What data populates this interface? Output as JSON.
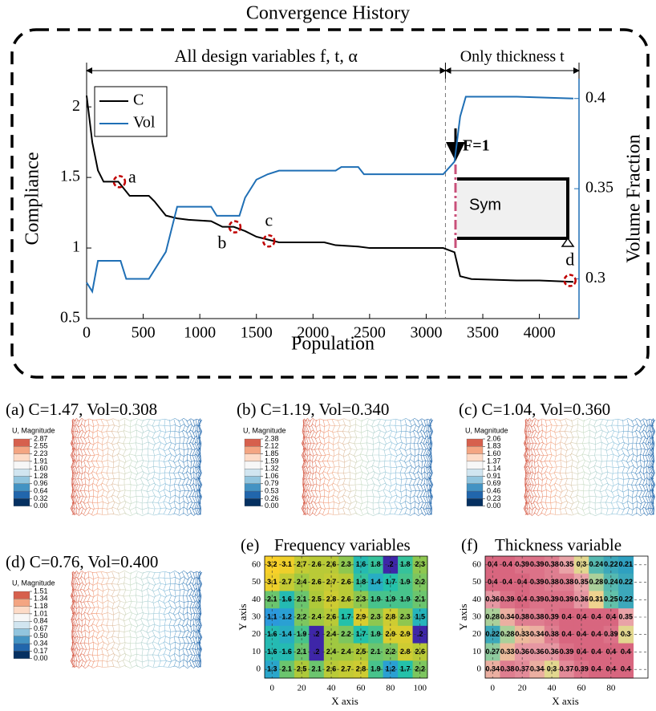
{
  "chart_data": [
    {
      "type": "line",
      "title": "Convergence History",
      "xlabel": "Population",
      "ylabel": "Compliance",
      "y2label": "Volume Fraction",
      "span_labels": [
        "All design variables f, t, α",
        "Only thickness t"
      ],
      "split_x": 3170,
      "xlim": [
        0,
        4350
      ],
      "xticks": [
        0,
        500,
        1000,
        1500,
        2000,
        2500,
        3000,
        3500,
        4000
      ],
      "ylim": [
        0.5,
        2.2
      ],
      "yticks": [
        0.5,
        1,
        1.5,
        2
      ],
      "y2lim": [
        0.278,
        0.411
      ],
      "y2ticks": [
        0.3,
        0.35,
        0.4
      ],
      "series": [
        {
          "name": "C",
          "color": "#000000",
          "x": [
            0,
            50,
            100,
            150,
            280,
            380,
            550,
            600,
            700,
            800,
            900,
            1100,
            1200,
            1300,
            1400,
            1500,
            1600,
            1700,
            2100,
            2200,
            2400,
            2500,
            3150,
            3250,
            3300,
            3400,
            3800,
            4000,
            4300
          ],
          "values": [
            2.08,
            1.75,
            1.55,
            1.47,
            1.47,
            1.37,
            1.37,
            1.33,
            1.23,
            1.21,
            1.2,
            1.19,
            1.15,
            1.15,
            1.12,
            1.08,
            1.06,
            1.04,
            1.04,
            1.02,
            1.01,
            1,
            1,
            0.97,
            0.8,
            0.78,
            0.77,
            0.77,
            0.76
          ]
        },
        {
          "name": "Vol",
          "color": "#1f6fb5",
          "axis": "y2",
          "x": [
            0,
            50,
            100,
            300,
            350,
            550,
            650,
            700,
            800,
            1100,
            1150,
            1350,
            1400,
            1500,
            1600,
            1700,
            2200,
            2250,
            2400,
            2450,
            3150,
            3250,
            3300,
            3350,
            3800,
            4300
          ],
          "values": [
            0.298,
            0.293,
            0.31,
            0.31,
            0.3,
            0.3,
            0.31,
            0.315,
            0.34,
            0.34,
            0.335,
            0.335,
            0.345,
            0.355,
            0.358,
            0.36,
            0.36,
            0.362,
            0.362,
            0.358,
            0.358,
            0.365,
            0.39,
            0.401,
            0.401,
            0.4
          ]
        }
      ],
      "annotations": [
        {
          "text": "a",
          "x": 290,
          "y": 1.47
        },
        {
          "text": "b",
          "x": 1310,
          "y": 1.15
        },
        {
          "text": "c",
          "x": 1610,
          "y": 1.05
        },
        {
          "text": "d",
          "x": 4270,
          "y": 0.77
        }
      ],
      "inset": {
        "force": "F=1",
        "label": "Sym"
      }
    },
    {
      "type": "mesh",
      "title": "(a) C=1.47, Vol=0.308",
      "colorbar_title": "U, Magnitude",
      "colorbar_ticks": [
        2.87,
        2.55,
        2.23,
        1.91,
        {
          "value": 1.6,
          "label": "1.60"
        },
        1.28,
        0.96,
        0.64,
        0.32,
        {
          "value": 0,
          "label": "0.00"
        }
      ],
      "colors": [
        "#d6604d",
        "#f4a582",
        "#fddbc7",
        "#f7f7f7",
        "#d1e5f0",
        "#92c5de",
        "#4393c3",
        "#2166ac",
        "#053061"
      ]
    },
    {
      "type": "mesh",
      "title": "(b) C=1.19,  Vol=0.340",
      "colorbar_title": "U, Magnitude",
      "colorbar_ticks": [
        2.38,
        2.12,
        1.85,
        1.59,
        1.32,
        1.06,
        0.79,
        0.53,
        0.26,
        {
          "value": 0,
          "label": "0.00"
        }
      ],
      "colors": [
        "#d6604d",
        "#f4a582",
        "#fddbc7",
        "#f7f7f7",
        "#d1e5f0",
        "#92c5de",
        "#4393c3",
        "#2166ac",
        "#053061"
      ]
    },
    {
      "type": "mesh",
      "title": "(c) C=1.04,  Vol=0.360",
      "colorbar_title": "U, Magnitude",
      "colorbar_ticks": [
        2.06,
        1.83,
        {
          "value": 1.6,
          "label": "1.60"
        },
        1.37,
        1.14,
        0.91,
        0.69,
        0.46,
        0.23,
        {
          "value": 0,
          "label": "0.00"
        }
      ],
      "colors": [
        "#d6604d",
        "#f4a582",
        "#fddbc7",
        "#f7f7f7",
        "#d1e5f0",
        "#92c5de",
        "#4393c3",
        "#2166ac",
        "#053061"
      ]
    },
    {
      "type": "mesh",
      "title": "(d) C=0.76,  Vol=0.400",
      "colorbar_title": "U, Magnitude",
      "colorbar_ticks": [
        1.51,
        1.34,
        1.18,
        1.01,
        0.84,
        0.67,
        {
          "value": 0.5,
          "label": "0.50"
        },
        0.34,
        0.17,
        {
          "value": 0,
          "label": "0.00"
        }
      ],
      "colors": [
        "#d6604d",
        "#f4a582",
        "#fddbc7",
        "#f7f7f7",
        "#d1e5f0",
        "#92c5de",
        "#4393c3",
        "#2166ac",
        "#053061"
      ]
    },
    {
      "type": "heatmap",
      "label": "(e)",
      "title": "Frequency variables",
      "xlabel": "X axis",
      "ylabel": "Y axis",
      "x": [
        0,
        10,
        20,
        30,
        40,
        50,
        60,
        70,
        80,
        90,
        100
      ],
      "y": [
        60,
        50,
        40,
        30,
        20,
        10,
        0
      ],
      "xlim": [
        -5,
        105
      ],
      "ylim": [
        -5,
        65
      ],
      "xticks": [
        0,
        20,
        40,
        60,
        80,
        100
      ],
      "yticks": [
        0,
        10,
        20,
        30,
        40,
        50,
        60
      ],
      "colors": [
        "#3e26a8",
        "#2d8fe8",
        "#24c1aa",
        "#a9c83a",
        "#f9d029"
      ],
      "values": [
        [
          3.2,
          3.1,
          2.7,
          2.6,
          2.6,
          2.3,
          1.6,
          1.8,
          0.2,
          1.8,
          2.3
        ],
        [
          3.1,
          2.7,
          2.4,
          2.6,
          2.7,
          2.6,
          1.8,
          1.4,
          1.7,
          1.9,
          2.2
        ],
        [
          2.1,
          1.6,
          2.1,
          2.5,
          2.8,
          2.6,
          2.3,
          1.9,
          1.9,
          1.9,
          2.1
        ],
        [
          1.1,
          1.2,
          2.2,
          2.4,
          2.6,
          1.7,
          2.9,
          2.3,
          2.8,
          2.3,
          1.5
        ],
        [
          1.6,
          1.4,
          1.9,
          0.2,
          2.4,
          2.2,
          1.7,
          1.9,
          2.9,
          2.9,
          0.2
        ],
        [
          1.6,
          1.6,
          2.1,
          0.2,
          2.4,
          2.4,
          2.5,
          2.1,
          2.2,
          2.8,
          2.6
        ],
        [
          1.3,
          2.1,
          2.5,
          2.1,
          2.6,
          2.7,
          2.8,
          1.9,
          1.2,
          1.7,
          2.2
        ]
      ],
      "value_labels": [
        [
          "3.2",
          "3.1",
          "2.7",
          "2.6",
          "2.6",
          "2.3",
          "1.6",
          "1.8",
          ".2",
          "1.8",
          "2.3"
        ],
        [
          "3.1",
          "2.7",
          "2.4",
          "2.6",
          "2.7",
          "2.6",
          "1.8",
          "1.4",
          "1.7",
          "1.9",
          "2.2"
        ],
        [
          "2.1",
          "1.6",
          "2.1",
          "2.5",
          "2.8",
          "2.6",
          "2.3",
          "1.9",
          "1.9",
          "1.9",
          "2.1"
        ],
        [
          "1.1",
          "1.2",
          "2.2",
          "2.4",
          "2.6",
          "1.7",
          "2.9",
          "2.3",
          "2.8",
          "2.3",
          "1.5"
        ],
        [
          "1.6",
          "1.4",
          "1.9",
          ".2",
          "2.4",
          "2.2",
          "1.7",
          "1.9",
          "2.9",
          "2.9",
          ".2"
        ],
        [
          "1.6",
          "1.6",
          "2.1",
          ".2",
          "2.4",
          "2.4",
          "2.5",
          "2.1",
          "2.2",
          "2.8",
          "2.6"
        ],
        [
          "1.3",
          "2.1",
          "2.5",
          "2.1",
          "2.6",
          "2.7",
          "2.8",
          "1.9",
          "1.2",
          "1.7",
          "2.2"
        ]
      ]
    },
    {
      "type": "heatmap",
      "label": "(f)",
      "title": "Thickness variable",
      "xlabel": "X axis",
      "ylabel": "Y axis",
      "x": [
        0,
        10,
        20,
        30,
        40,
        50,
        60,
        70,
        80,
        90
      ],
      "y": [
        60,
        50,
        40,
        30,
        20,
        10,
        0
      ],
      "xlim": [
        -5,
        105
      ],
      "ylim": [
        -5,
        65
      ],
      "xticks": [
        0,
        20,
        40,
        60,
        80
      ],
      "yticks": [
        0,
        10,
        20,
        30,
        40,
        50,
        60
      ],
      "colors": [
        "#2fa0c0",
        "#6cc7a6",
        "#f0d98c",
        "#e9a0a8",
        "#d8667f"
      ],
      "values": [
        [
          0.4,
          0.4,
          0.39,
          0.39,
          0.38,
          0.35,
          0.3,
          0.24,
          0.22,
          0.21
        ],
        [
          0.4,
          0.4,
          0.4,
          0.39,
          0.38,
          0.38,
          0.35,
          0.28,
          0.24,
          0.22
        ],
        [
          0.36,
          0.39,
          0.4,
          0.39,
          0.39,
          0.39,
          0.36,
          0.31,
          0.25,
          0.22
        ],
        [
          0.28,
          0.34,
          0.38,
          0.38,
          0.39,
          0.4,
          0.4,
          0.4,
          0.4,
          0.35
        ],
        [
          0.22,
          0.28,
          0.33,
          0.34,
          0.38,
          0.4,
          0.4,
          0.4,
          0.39,
          0.3
        ],
        [
          0.27,
          0.33,
          0.36,
          0.36,
          0.36,
          0.39,
          0.4,
          0.4,
          0.4,
          0.4
        ],
        [
          0.34,
          0.38,
          0.37,
          0.34,
          0.3,
          0.37,
          0.39,
          0.4,
          0.4,
          0.4
        ]
      ]
    }
  ]
}
